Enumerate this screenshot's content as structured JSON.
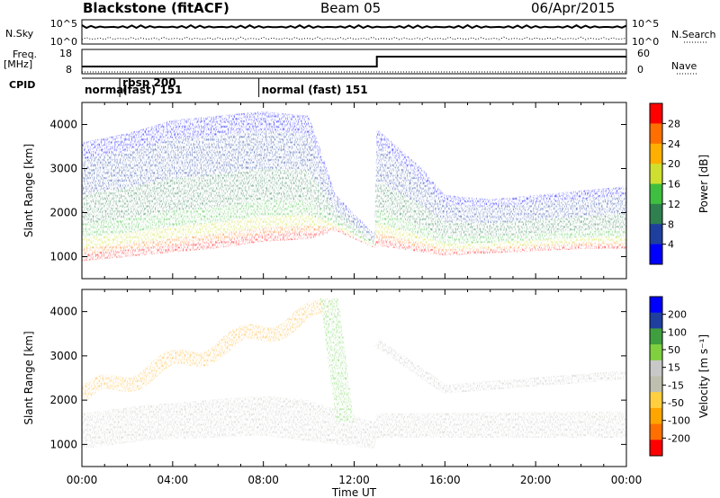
{
  "header": {
    "station": "Blackstone (fitACF)",
    "beam": "Beam 05",
    "date": "06/Apr/2015"
  },
  "panel_labels": {
    "nsky": "N.Sky",
    "nsearch": "N.Search",
    "freq": "Freq.",
    "freq_unit": "[MHz]",
    "cpid": "CPID",
    "nave": "Nave",
    "nsky_ticks": [
      "10^5",
      "10^0"
    ],
    "freq_ticks": [
      "18",
      "8"
    ],
    "nave_ticks": [
      "60",
      "0"
    ]
  },
  "cpid_labels": [
    {
      "text": "normal",
      "start_hour": 0.0,
      "end_hour": 1.67
    },
    {
      "text": "rbsp 200",
      "start_hour": 1.67,
      "end_hour": 7.8
    },
    {
      "text": "(fast) 151",
      "start_hour": 1.67,
      "end_hour": 7.8
    },
    {
      "text": "normal (fast)  151",
      "start_hour": 7.8,
      "end_hour": 24.0
    }
  ],
  "chart_data": [
    {
      "type": "heatmap",
      "name": "power",
      "ylabel": "Slant Range [km]",
      "xlim": [
        0,
        24
      ],
      "ylim": [
        500,
        4500
      ],
      "yticks": [
        "1000",
        "2000",
        "3000",
        "4000"
      ],
      "colorbar_label": "Power [dB]",
      "colorbar_ticks": [
        "28",
        "24",
        "20",
        "16",
        "12",
        "8",
        "4"
      ],
      "colors": [
        "#0000ff",
        "#1f3f9f",
        "#2f7f4f",
        "#3fbf3f",
        "#cfdf2f",
        "#ffaf00",
        "#ff6f00",
        "#ff0000"
      ],
      "band_lower_km": [
        [
          0,
          950
        ],
        [
          2,
          1050
        ],
        [
          4,
          1150
        ],
        [
          6,
          1250
        ],
        [
          8,
          1400
        ],
        [
          10,
          1450
        ],
        [
          11.2,
          1600
        ],
        [
          12.9,
          1200
        ],
        [
          13.0,
          1300
        ],
        [
          16,
          1050
        ],
        [
          18,
          1100
        ],
        [
          20,
          1150
        ],
        [
          22,
          1200
        ],
        [
          24,
          1200
        ]
      ],
      "band_upper_km": [
        [
          0,
          3600
        ],
        [
          2,
          3800
        ],
        [
          4,
          4100
        ],
        [
          6,
          4200
        ],
        [
          8,
          4300
        ],
        [
          10,
          4200
        ],
        [
          11.2,
          2400
        ],
        [
          12.9,
          1500
        ],
        [
          13.0,
          3900
        ],
        [
          15,
          3000
        ],
        [
          16,
          2400
        ],
        [
          18,
          2300
        ],
        [
          20,
          2400
        ],
        [
          22,
          2500
        ],
        [
          24,
          2600
        ]
      ]
    },
    {
      "type": "heatmap",
      "name": "velocity",
      "ylabel": "Slant Range [km]",
      "xlabel": "Time UT",
      "xlim": [
        0,
        24
      ],
      "ylim": [
        500,
        4500
      ],
      "yticks": [
        "1000",
        "2000",
        "3000",
        "4000"
      ],
      "xticks": [
        "00:00",
        "04:00",
        "08:00",
        "12:00",
        "16:00",
        "20:00",
        "00:00"
      ],
      "colorbar_label": "Velocity [m s⁻¹]",
      "colorbar_ticks": [
        "200",
        "100",
        "50",
        "15",
        "-15",
        "-50",
        "-100",
        "-200"
      ],
      "colors": [
        "#ff0000",
        "#ff6f00",
        "#ffa500",
        "#ffcf3f",
        "#bfbfaf",
        "#c8c8c8",
        "#7fcf3f",
        "#3f9f3f",
        "#1f3f9f",
        "#0000ff"
      ],
      "ground_band_km": [
        [
          0,
          900
        ],
        [
          3,
          1100
        ],
        [
          8,
          1200
        ],
        [
          12.9,
          900
        ],
        [
          13.0,
          1150
        ],
        [
          24,
          1150
        ]
      ],
      "ground_band_top_km": [
        [
          0,
          1700
        ],
        [
          3,
          1900
        ],
        [
          8,
          2100
        ],
        [
          10,
          2000
        ],
        [
          12.9,
          1500
        ],
        [
          13.0,
          1700
        ],
        [
          24,
          1750
        ]
      ]
    }
  ]
}
